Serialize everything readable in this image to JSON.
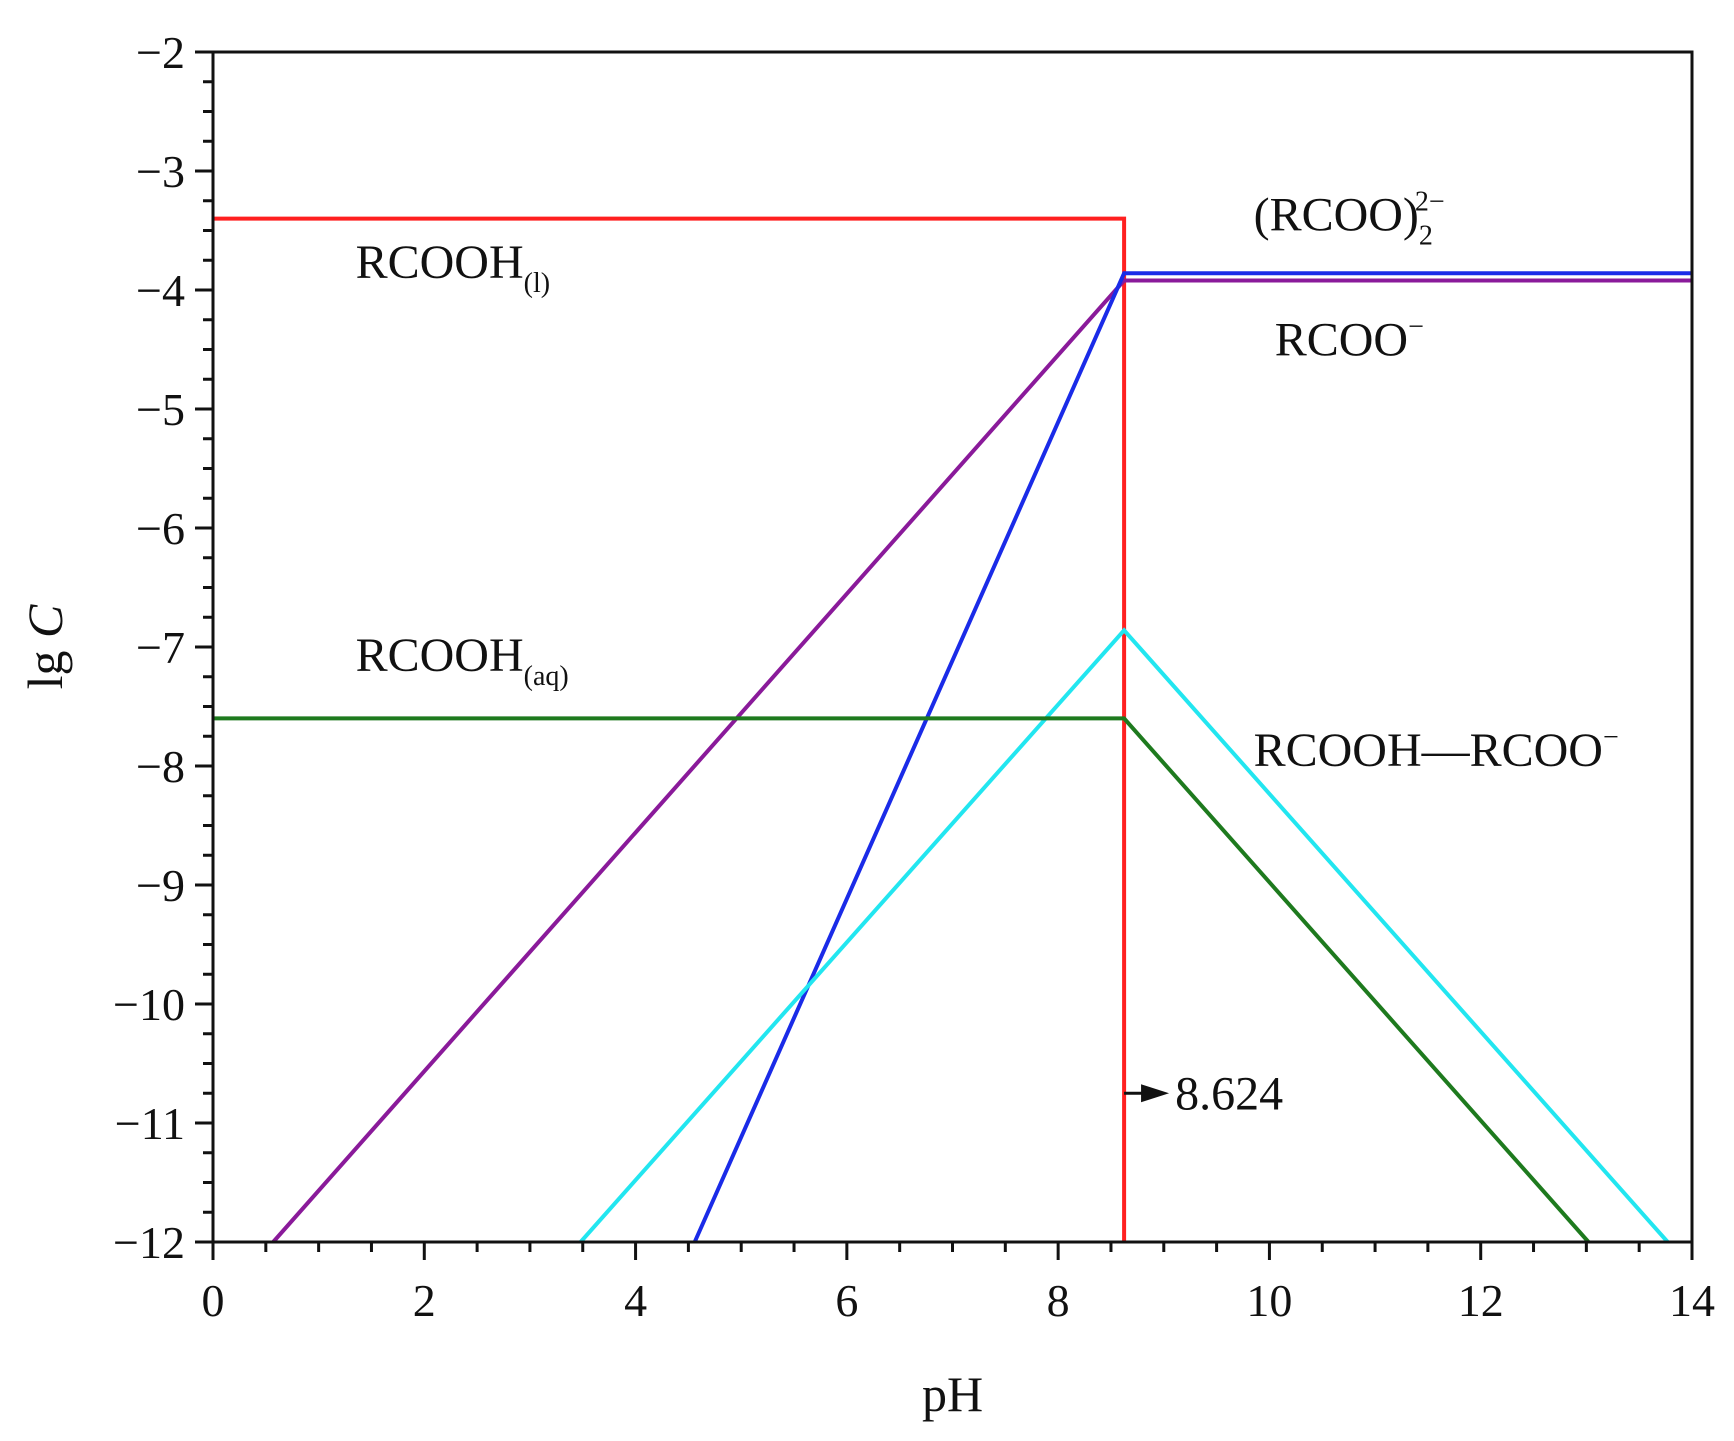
{
  "chart_data": {
    "type": "line",
    "title": "",
    "xlabel": "pH",
    "ylabel": {
      "prefix": "lg ",
      "italic": "C"
    },
    "xlim": [
      0,
      14
    ],
    "ylim": [
      -12,
      -2
    ],
    "xticks": [
      0,
      2,
      4,
      6,
      8,
      10,
      12,
      14
    ],
    "yticks": [
      -2,
      -3,
      -4,
      -5,
      -6,
      -7,
      -8,
      -9,
      -10,
      -11,
      -12
    ],
    "ytick_labels": [
      "−2",
      "−3",
      "−4",
      "−5",
      "−6",
      "−7",
      "−8",
      "−9",
      "−10",
      "−11",
      "−12"
    ],
    "series": [
      {
        "name": "RCOOH(l)",
        "color": "#ff2020",
        "x": [
          0,
          8.624,
          8.624
        ],
        "y": [
          -3.4,
          -3.4,
          -12
        ]
      },
      {
        "name": "RCOO−",
        "color": "#8a1a9a",
        "x": [
          0.57,
          8.624,
          14
        ],
        "y": [
          -12,
          -3.92,
          -3.92
        ]
      },
      {
        "name": "(RCOO)2 2−",
        "color": "#1a2be8",
        "x": [
          4.56,
          8.624,
          14
        ],
        "y": [
          -12,
          -3.86,
          -3.86
        ]
      },
      {
        "name": "RCOOH—RCOO−",
        "color": "#22e6f0",
        "x": [
          3.48,
          8.624,
          13.77
        ],
        "y": [
          -12,
          -6.86,
          -12
        ]
      },
      {
        "name": "RCOOH(aq)",
        "color": "#1e7a1e",
        "x": [
          0,
          8.624,
          13.02
        ],
        "y": [
          -7.6,
          -7.6,
          -12
        ]
      }
    ],
    "labels": [
      {
        "name": "rcooh-l",
        "main": "RCOOH",
        "sub": "(l)",
        "sup": "",
        "x": 1.35,
        "y": -3.9
      },
      {
        "name": "rcoo2",
        "main": "(RCOO)",
        "sub": "2",
        "sup": "2−",
        "x": 9.85,
        "y": -3.5
      },
      {
        "name": "rcoo-minus",
        "main": "RCOO",
        "sub": "",
        "sup": "−",
        "x": 10.05,
        "y": -4.55
      },
      {
        "name": "rcooh-aq",
        "main": "RCOOH",
        "sub": "(aq)",
        "sup": "",
        "x": 1.35,
        "y": -7.2
      },
      {
        "name": "rcooh-rcoo",
        "main": "RCOOH—RCOO",
        "sub": "",
        "sup": "−",
        "x": 9.85,
        "y": -8.0
      }
    ],
    "annotation": {
      "text": "8.624",
      "x": 8.624,
      "y": -10.75,
      "arrow_to_x": 9.05
    }
  }
}
